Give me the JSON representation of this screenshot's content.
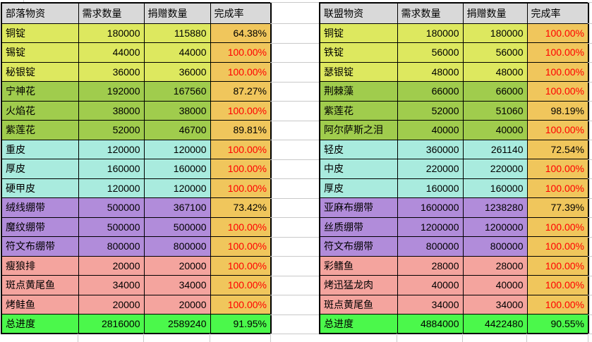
{
  "colors": {
    "header_bg": "#D9D9D9",
    "group_metal": "#DDE85F",
    "group_herb": "#A0CC4D",
    "group_leather": "#A9EBDE",
    "group_bandage": "#B18CDA",
    "group_food": "#F4A49E",
    "rate_bg": "#F0C65C",
    "total_bg": "#4BF84B",
    "rate_complete_text": "#FF0000",
    "text": "#000000",
    "gridline": "#C9C9C9"
  },
  "tables": [
    {
      "id": "horde",
      "headers": {
        "item": "部落物资",
        "required": "需求数量",
        "donated": "捐赠数量",
        "rate": "完成率"
      },
      "rows": [
        {
          "item": "铜锭",
          "required": "180000",
          "donated": "115880",
          "rate": "64.38%",
          "group": "metal"
        },
        {
          "item": "锡锭",
          "required": "44000",
          "donated": "44000",
          "rate": "100.00%",
          "group": "metal"
        },
        {
          "item": "秘银锭",
          "required": "36000",
          "donated": "36000",
          "rate": "100.00%",
          "group": "metal"
        },
        {
          "item": "宁神花",
          "required": "192000",
          "donated": "167560",
          "rate": "87.27%",
          "group": "herb"
        },
        {
          "item": "火焰花",
          "required": "38000",
          "donated": "38000",
          "rate": "100.00%",
          "group": "herb"
        },
        {
          "item": "紫莲花",
          "required": "52000",
          "donated": "46700",
          "rate": "89.81%",
          "group": "herb"
        },
        {
          "item": "重皮",
          "required": "120000",
          "donated": "120000",
          "rate": "100.00%",
          "group": "leather"
        },
        {
          "item": "厚皮",
          "required": "160000",
          "donated": "160000",
          "rate": "100.00%",
          "group": "leather"
        },
        {
          "item": "硬甲皮",
          "required": "120000",
          "donated": "120000",
          "rate": "100.00%",
          "group": "leather"
        },
        {
          "item": "绒线绷带",
          "required": "500000",
          "donated": "367100",
          "rate": "73.42%",
          "group": "bandage"
        },
        {
          "item": "魔纹绷带",
          "required": "500000",
          "donated": "500000",
          "rate": "100.00%",
          "group": "bandage"
        },
        {
          "item": "符文布绷带",
          "required": "800000",
          "donated": "800000",
          "rate": "100.00%",
          "group": "bandage"
        },
        {
          "item": "瘦狼排",
          "required": "20000",
          "donated": "20000",
          "rate": "100.00%",
          "group": "food"
        },
        {
          "item": "斑点黄尾鱼",
          "required": "34000",
          "donated": "34000",
          "rate": "100.00%",
          "group": "food"
        },
        {
          "item": "烤鲑鱼",
          "required": "20000",
          "donated": "20000",
          "rate": "100.00%",
          "group": "food"
        }
      ],
      "total": {
        "item": "总进度",
        "required": "2816000",
        "donated": "2589240",
        "rate": "91.95%"
      }
    },
    {
      "id": "alliance",
      "headers": {
        "item": "联盟物资",
        "required": "需求数量",
        "donated": "捐赠数量",
        "rate": "完成率"
      },
      "rows": [
        {
          "item": "铜锭",
          "required": "180000",
          "donated": "180000",
          "rate": "100.00%",
          "group": "metal"
        },
        {
          "item": "铁锭",
          "required": "56000",
          "donated": "56000",
          "rate": "100.00%",
          "group": "metal"
        },
        {
          "item": "瑟银锭",
          "required": "48000",
          "donated": "48000",
          "rate": "100.00%",
          "group": "metal"
        },
        {
          "item": "荆棘藻",
          "required": "66000",
          "donated": "66000",
          "rate": "100.00%",
          "group": "herb"
        },
        {
          "item": "紫莲花",
          "required": "52000",
          "donated": "51060",
          "rate": "98.19%",
          "group": "herb"
        },
        {
          "item": "阿尔萨斯之泪",
          "required": "40000",
          "donated": "40000",
          "rate": "100.00%",
          "group": "herb"
        },
        {
          "item": "轻皮",
          "required": "360000",
          "donated": "261140",
          "rate": "72.54%",
          "group": "leather"
        },
        {
          "item": "中皮",
          "required": "220000",
          "donated": "220000",
          "rate": "100.00%",
          "group": "leather"
        },
        {
          "item": "厚皮",
          "required": "160000",
          "donated": "160000",
          "rate": "100.00%",
          "group": "leather"
        },
        {
          "item": "亚麻布绷带",
          "required": "1600000",
          "donated": "1238280",
          "rate": "77.39%",
          "group": "bandage"
        },
        {
          "item": "丝质绷带",
          "required": "1200000",
          "donated": "1200000",
          "rate": "100.00%",
          "group": "bandage"
        },
        {
          "item": "符文布绷带",
          "required": "800000",
          "donated": "800000",
          "rate": "100.00%",
          "group": "bandage"
        },
        {
          "item": "彩鳍鱼",
          "required": "28000",
          "donated": "28000",
          "rate": "100.00%",
          "group": "food"
        },
        {
          "item": "烤迅猛龙肉",
          "required": "40000",
          "donated": "40000",
          "rate": "100.00%",
          "group": "food"
        },
        {
          "item": "斑点黄尾鱼",
          "required": "34000",
          "donated": "34000",
          "rate": "100.00%",
          "group": "food"
        }
      ],
      "total": {
        "item": "总进度",
        "required": "4884000",
        "donated": "4422480",
        "rate": "90.55%"
      }
    }
  ]
}
